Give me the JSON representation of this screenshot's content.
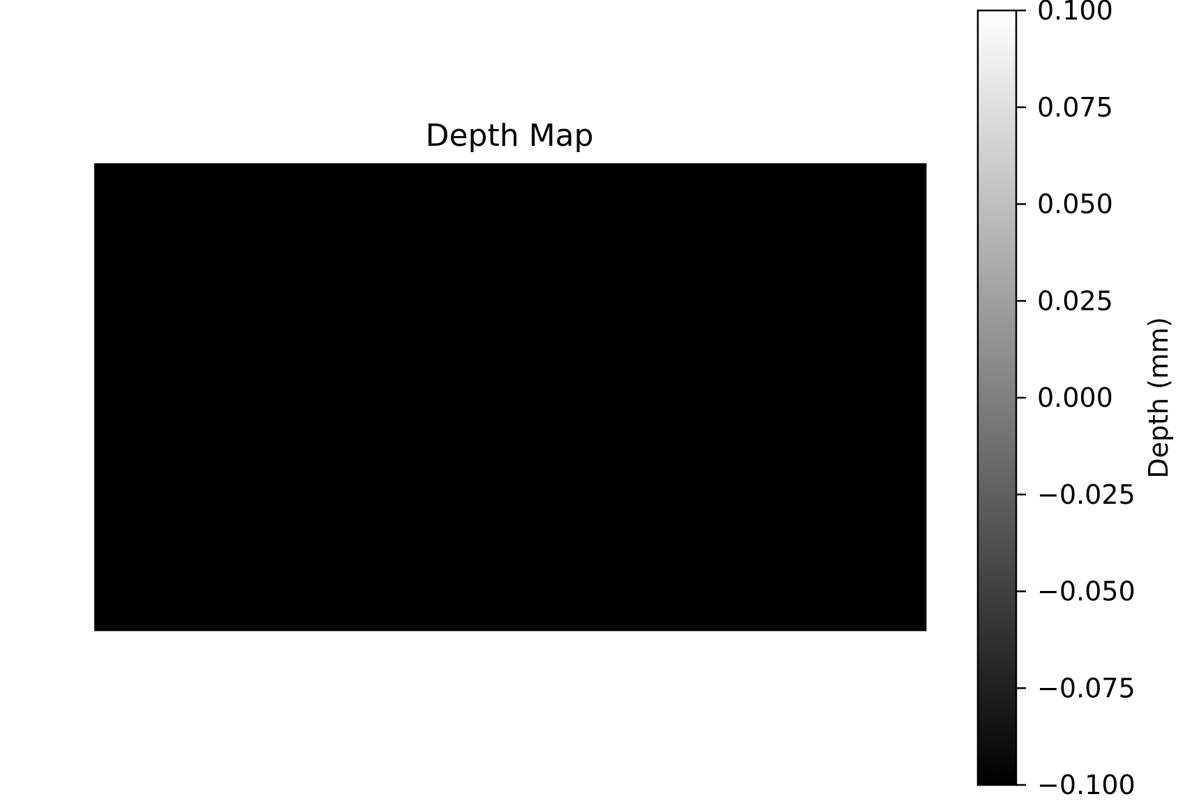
{
  "chart_data": {
    "type": "heatmap",
    "title": "Depth Map",
    "xlabel": "",
    "ylabel": "",
    "axes_visible": false,
    "grid": false,
    "values": [
      [
        -0.1
      ]
    ],
    "colormap": {
      "name": "gray",
      "low_color": "#000000",
      "high_color": "#ffffff"
    },
    "colorbar": {
      "label": "Depth (mm)",
      "range": [
        -0.1,
        0.1
      ],
      "ticks": [
        -0.1,
        -0.075,
        -0.05,
        -0.025,
        0.0,
        0.025,
        0.05,
        0.075,
        0.1
      ],
      "tick_labels": [
        "−0.100",
        "−0.075",
        "−0.050",
        "−0.025",
        "0.000",
        "0.025",
        "0.050",
        "0.075",
        "0.100"
      ],
      "placement": "right"
    }
  },
  "colors": {
    "background": "#ffffff",
    "text": "#000000",
    "frame": "#000000"
  }
}
